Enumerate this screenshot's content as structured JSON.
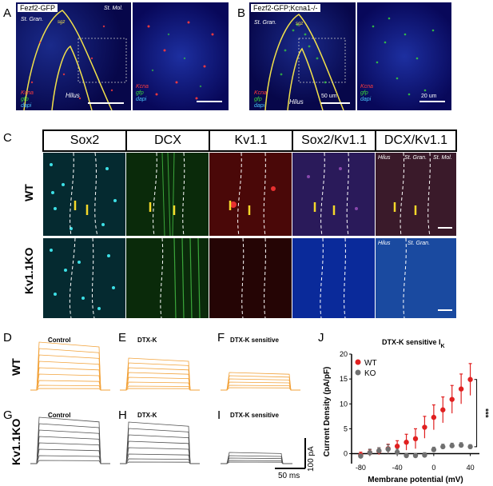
{
  "panels": {
    "A": {
      "letter": "A",
      "title": "Fezf2-GFP",
      "labels": {
        "st_gran": "St. Gran.",
        "st_mol": "St. Mol.",
        "sgz": "sgz",
        "hilus": "Hilus"
      },
      "legend": [
        "Kcna",
        "gfp",
        "dapi"
      ]
    },
    "B": {
      "letter": "B",
      "title": "Fezf2-GFP;Kcna1-/-",
      "labels": {
        "st_gran": "St. Gran.",
        "sgz": "sgz",
        "hilus": "Hilus"
      },
      "legend": [
        "Kcna",
        "gfp",
        "dapi"
      ],
      "scale1": "50 um",
      "scale2": "20 um"
    },
    "C": {
      "letter": "C",
      "columns": [
        "Sox2",
        "DCX",
        "Kv1.1",
        "Sox2/Kv1.1",
        "DCX/Kv1.1"
      ],
      "rows": [
        "WT",
        "Kv1.1KO"
      ],
      "overlay_wt": {
        "hilus": "Hilus",
        "st_gran": "St. Gran.",
        "st_mol": "St. Mol."
      },
      "overlay_ko": {
        "hilus": "Hilus",
        "st_gran": "St. Gran."
      }
    },
    "D": {
      "letter": "D",
      "title": "Control"
    },
    "E": {
      "letter": "E",
      "title": "DTX-K"
    },
    "F": {
      "letter": "F",
      "title": "DTX-K sensitive"
    },
    "G": {
      "letter": "G",
      "title": "Control"
    },
    "H": {
      "letter": "H",
      "title": "DTX-K"
    },
    "I": {
      "letter": "I",
      "title": "DTX-K sensitive"
    },
    "J": {
      "letter": "J"
    },
    "trace_rows": {
      "wt": "WT",
      "ko": "Kv1.1KO"
    },
    "scalebars": {
      "current": "100 pA",
      "time": "50 ms"
    }
  },
  "chart_data": {
    "type": "scatter",
    "title": "DTX-K sensitive I",
    "title_subscript": "K",
    "xlabel": "Membrane potential (mV)",
    "ylabel": "Current Density (pA/pF)",
    "xlim": [
      -90,
      50
    ],
    "ylim": [
      -2,
      20
    ],
    "xticks": [
      -80,
      -40,
      0,
      40
    ],
    "yticks": [
      0,
      5,
      10,
      15,
      20
    ],
    "legend_position": "top-left",
    "significance": "***",
    "series": [
      {
        "name": "WT",
        "color": "#e02020",
        "x": [
          -80,
          -70,
          -60,
          -50,
          -40,
          -30,
          -20,
          -10,
          0,
          10,
          20,
          30,
          40
        ],
        "y": [
          -0.3,
          0.2,
          0.5,
          1.0,
          1.5,
          2.3,
          3.0,
          5.3,
          7.3,
          8.8,
          10.9,
          13.0,
          14.9
        ],
        "err": [
          0.6,
          0.6,
          0.7,
          0.9,
          1.1,
          1.6,
          2.0,
          2.2,
          2.5,
          2.6,
          2.8,
          3.0,
          3.2
        ]
      },
      {
        "name": "KO",
        "color": "#707070",
        "x": [
          -80,
          -70,
          -60,
          -50,
          -40,
          -30,
          -20,
          -10,
          0,
          10,
          20,
          30,
          40
        ],
        "y": [
          -0.5,
          0.2,
          0.6,
          0.9,
          0.3,
          -0.4,
          -0.4,
          -0.3,
          0.8,
          1.4,
          1.6,
          1.7,
          1.4
        ],
        "err": [
          0.4,
          0.7,
          0.6,
          0.9,
          0.6,
          0.4,
          0.4,
          0.5,
          0.5,
          0.5,
          0.5,
          0.5,
          0.4
        ]
      }
    ]
  }
}
